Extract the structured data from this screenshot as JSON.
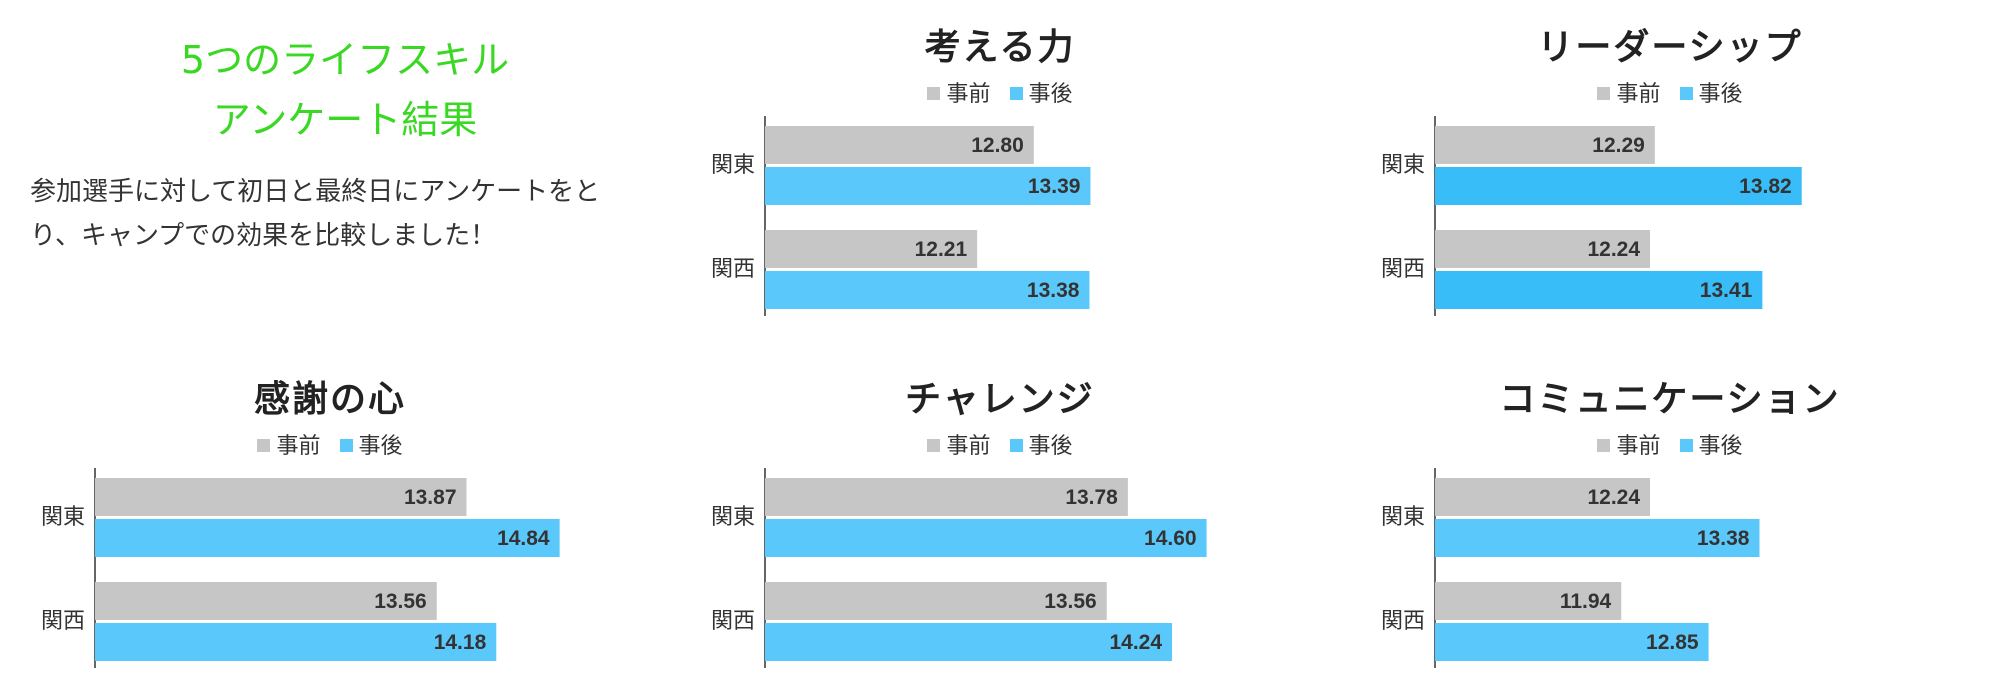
{
  "intro": {
    "title_line1": "5つのライフスキル",
    "title_line2": "アンケート結果",
    "text_line1": "参加選手に対して初日と最終日にアンケートをと",
    "text_line2": "り、キャンプでの効果を比較しました！"
  },
  "colors": {
    "before": "#c6c6c6",
    "after": "#5ac8fa",
    "after_highlight": "#38bdf8",
    "axis": "#333333",
    "title_green": "#39d822"
  },
  "chart_data": [
    {
      "type": "bar",
      "orientation": "horizontal",
      "title": "考える力",
      "categories": [
        "関東",
        "関西"
      ],
      "series": [
        {
          "name": "事前",
          "values": [
            12.8,
            12.21
          ]
        },
        {
          "name": "事後",
          "values": [
            13.39,
            13.38
          ]
        }
      ],
      "legend": "top-center",
      "data_labels": true
    },
    {
      "type": "bar",
      "orientation": "horizontal",
      "title": "リーダーシップ",
      "categories": [
        "関東",
        "関西"
      ],
      "series": [
        {
          "name": "事前",
          "values": [
            12.29,
            12.24
          ]
        },
        {
          "name": "事後",
          "values": [
            13.82,
            13.41
          ]
        }
      ],
      "legend": "top-center",
      "data_labels": true
    },
    {
      "type": "bar",
      "orientation": "horizontal",
      "title": "感謝の心",
      "categories": [
        "関東",
        "関西"
      ],
      "series": [
        {
          "name": "事前",
          "values": [
            13.87,
            13.56
          ]
        },
        {
          "name": "事後",
          "values": [
            14.84,
            14.18
          ]
        }
      ],
      "legend": "top-center",
      "data_labels": true
    },
    {
      "type": "bar",
      "orientation": "horizontal",
      "title": "チャレンジ",
      "categories": [
        "関東",
        "関西"
      ],
      "series": [
        {
          "name": "事前",
          "values": [
            13.78,
            13.56
          ]
        },
        {
          "name": "事後",
          "values": [
            14.6,
            14.24
          ]
        }
      ],
      "legend": "top-center",
      "data_labels": true
    },
    {
      "type": "bar",
      "orientation": "horizontal",
      "title": "コミュニケーション",
      "categories": [
        "関東",
        "関西"
      ],
      "series": [
        {
          "name": "事前",
          "values": [
            12.24,
            11.94
          ]
        },
        {
          "name": "事後",
          "values": [
            13.38,
            12.85
          ]
        }
      ],
      "legend": "top-center",
      "data_labels": true
    }
  ]
}
